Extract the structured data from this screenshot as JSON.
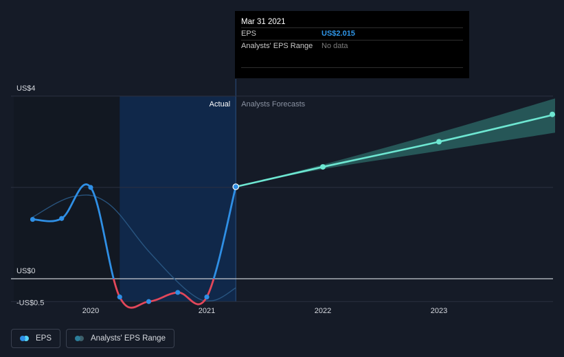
{
  "chart_data": {
    "type": "line",
    "currency_prefix": "US$",
    "y_ticks": [
      {
        "label": "US$4",
        "value": 4
      },
      {
        "label": "US$0",
        "value": 0
      },
      {
        "label": "-US$0.5",
        "value": -0.5
      }
    ],
    "ylim": [
      -0.5,
      4
    ],
    "xlim": [
      2019.48,
      2024.0
    ],
    "x_ticks": [
      {
        "label": "2020",
        "value": 2020
      },
      {
        "label": "2021",
        "value": 2021
      },
      {
        "label": "2022",
        "value": 2022
      },
      {
        "label": "2023",
        "value": 2023
      }
    ],
    "actual_label": "Actual",
    "forecast_label": "Analysts Forecasts",
    "divider_x": 2021.25,
    "highlight_start_x": 2020.25,
    "series": [
      {
        "name": "EPS",
        "kind": "actual",
        "points": [
          {
            "x": 2019.5,
            "y": 1.3
          },
          {
            "x": 2019.75,
            "y": 1.32
          },
          {
            "x": 2020.0,
            "y": 2.0
          },
          {
            "x": 2020.25,
            "y": -0.4
          },
          {
            "x": 2020.5,
            "y": -0.5
          },
          {
            "x": 2020.75,
            "y": -0.3
          },
          {
            "x": 2021.0,
            "y": -0.4
          },
          {
            "x": 2021.25,
            "y": 2.015
          }
        ]
      },
      {
        "name": "Analysts' EPS Range",
        "kind": "smoothed",
        "points": [
          {
            "x": 2019.5,
            "y": 1.35
          },
          {
            "x": 2019.85,
            "y": 1.8
          },
          {
            "x": 2020.15,
            "y": 1.65
          },
          {
            "x": 2020.5,
            "y": 0.6
          },
          {
            "x": 2020.85,
            "y": -0.3
          },
          {
            "x": 2021.05,
            "y": -0.48
          },
          {
            "x": 2021.25,
            "y": -0.2
          }
        ]
      },
      {
        "name": "EPS Forecast",
        "kind": "forecast",
        "points": [
          {
            "x": 2021.25,
            "y": 2.015
          },
          {
            "x": 2022.0,
            "y": 2.45
          },
          {
            "x": 2023.0,
            "y": 3.0
          },
          {
            "x": 2024.0,
            "y": 3.6
          }
        ],
        "range_low": [
          2.015,
          2.4,
          2.8,
          3.2
        ],
        "range_high": [
          2.015,
          2.5,
          3.2,
          3.95
        ]
      }
    ]
  },
  "tooltip": {
    "date": "Mar 31 2021",
    "eps_label": "EPS",
    "eps_value": "US$2.015",
    "range_label": "Analysts' EPS Range",
    "range_value": "No data"
  },
  "legend": {
    "items": [
      {
        "label": "EPS",
        "colors": [
          "#2e8fe6",
          "#56d4f5"
        ]
      },
      {
        "label": "Analysts' EPS Range",
        "colors": [
          "#2c7e9a",
          "#3d5f6a"
        ]
      }
    ]
  },
  "colors": {
    "eps_line": "#2f8fe5",
    "negative_line": "#e2475a",
    "forecast_line": "#6ee7d2",
    "forecast_band": "#2c6b68",
    "smoothed_line": "#2b5a86",
    "highlight": "#0f2a4f",
    "zero_line": "#c8ccd2",
    "grid": "#2b3140"
  }
}
